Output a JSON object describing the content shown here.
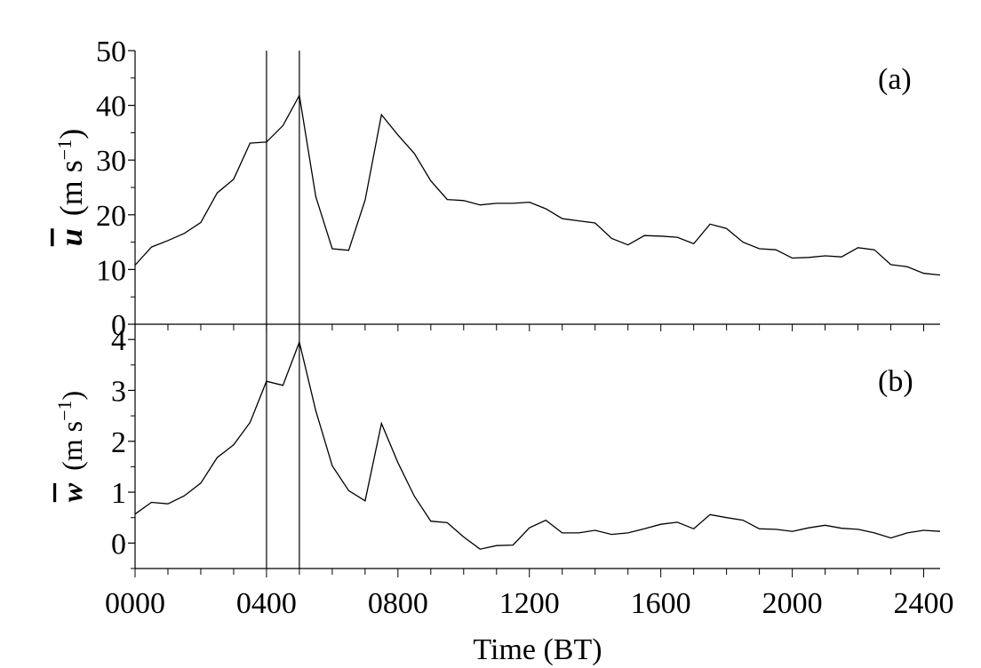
{
  "chart_data": {
    "type": "line",
    "x_axis": {
      "label": "Time (BT)",
      "range": [
        0,
        2450
      ],
      "tick_labels": [
        "0000",
        "0400",
        "0800",
        "1200",
        "1600",
        "2000",
        "2400"
      ],
      "tick_values": [
        0,
        400,
        800,
        1200,
        1600,
        2000,
        2400
      ]
    },
    "x": [
      0,
      50,
      100,
      150,
      200,
      250,
      300,
      350,
      400,
      450,
      500,
      550,
      600,
      650,
      700,
      750,
      800,
      850,
      900,
      950,
      1000,
      1050,
      1100,
      1150,
      1200,
      1250,
      1300,
      1350,
      1400,
      1450,
      1500,
      1550,
      1600,
      1650,
      1700,
      1750,
      1800,
      1850,
      1900,
      1950,
      2000,
      2050,
      2100,
      2150,
      2200,
      2250,
      2300,
      2350,
      2400,
      2450
    ],
    "reference_lines_x": [
      400,
      500
    ],
    "panels": [
      {
        "panel_label": "(a)",
        "ylabel_symbol": "u",
        "ylabel_units": "(m s",
        "ylabel_exp": "−1",
        "ylabel_close": ")",
        "ylim": [
          0,
          50
        ],
        "yticks": [
          0,
          10,
          20,
          30,
          40,
          50
        ],
        "grid": false,
        "values": [
          10.8,
          14.1,
          15.3,
          16.6,
          18.6,
          24.0,
          26.5,
          33.1,
          33.3,
          36.3,
          41.8,
          23.3,
          13.8,
          13.5,
          22.7,
          38.3,
          34.6,
          31.2,
          26.2,
          22.8,
          22.6,
          21.8,
          22.1,
          22.1,
          22.3,
          21.1,
          19.3,
          18.9,
          18.5,
          15.7,
          14.5,
          16.2,
          16.1,
          15.9,
          14.7,
          18.3,
          17.5,
          15.0,
          13.8,
          13.6,
          12.1,
          12.2,
          12.5,
          12.3,
          14.0,
          13.6,
          10.9,
          10.5,
          9.3,
          9.0
        ]
      },
      {
        "panel_label": "(b)",
        "ylabel_symbol": "w",
        "ylabel_units": "(m s",
        "ylabel_exp": "−1",
        "ylabel_close": ")",
        "ylim": [
          -0.5,
          4.3
        ],
        "yticks": [
          0,
          1,
          2,
          3,
          4
        ],
        "grid": false,
        "values": [
          0.57,
          0.8,
          0.77,
          0.93,
          1.18,
          1.68,
          1.93,
          2.37,
          3.18,
          3.1,
          3.95,
          2.6,
          1.52,
          1.03,
          0.83,
          2.35,
          1.58,
          0.92,
          0.43,
          0.4,
          0.12,
          -0.12,
          -0.05,
          -0.04,
          0.3,
          0.45,
          0.2,
          0.2,
          0.25,
          0.17,
          0.2,
          0.28,
          0.37,
          0.41,
          0.28,
          0.56,
          0.5,
          0.45,
          0.28,
          0.27,
          0.23,
          0.3,
          0.35,
          0.29,
          0.27,
          0.2,
          0.1,
          0.2,
          0.25,
          0.23
        ]
      }
    ]
  }
}
